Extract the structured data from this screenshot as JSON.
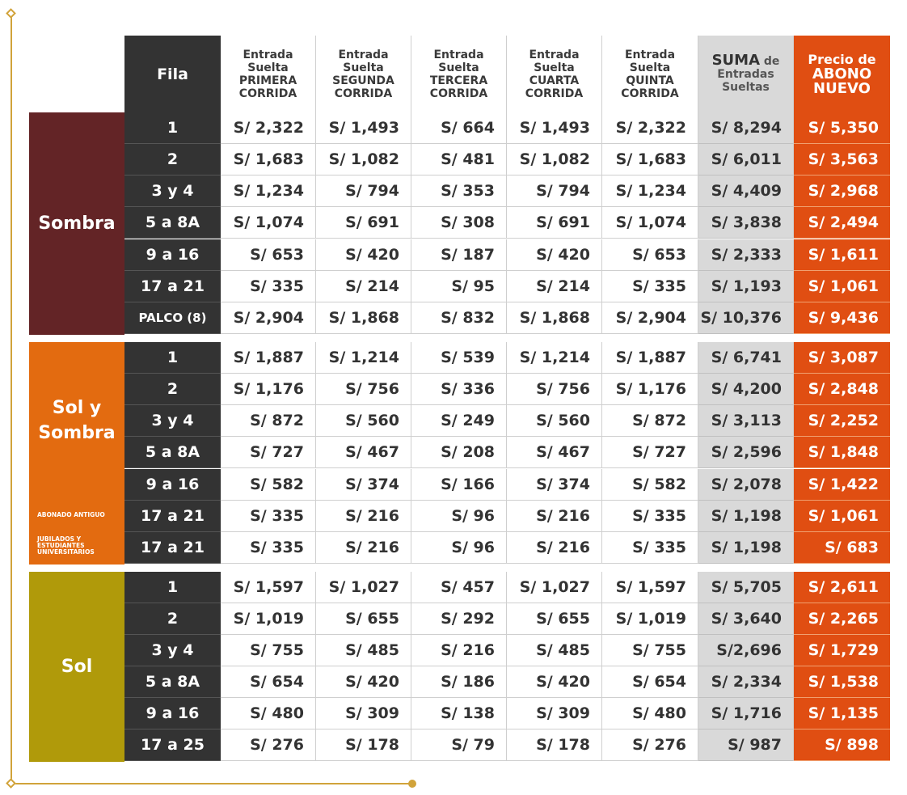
{
  "colors": {
    "accent_gold": "#d1a33a",
    "fila_bg": "#333333",
    "suma_bg": "#d9d9d9",
    "precio_bg": "#e04e12",
    "sombra": "#632426",
    "sol_y_sombra": "#e36b10",
    "sol": "#b09a0a"
  },
  "header": {
    "fila": "Fila",
    "c1": "Entrada\nSuelta\nPRIMERA\nCORRIDA",
    "c2": "Entrada\nSuelta\nSEGUNDA\nCORRIDA",
    "c3": "Entrada\nSuelta\nTERCERA\nCORRIDA",
    "c4": "Entrada\nSuelta\nCUARTA\nCORRIDA",
    "c5": "Entrada\nSuelta\nQUINTA\nCORRIDA",
    "suma_bold": "SUMA",
    "suma_rest": " de\nEntradas\nSueltas",
    "precio_top": "Precio de",
    "precio_bold": "ABONO\nNUEVO"
  },
  "groups": [
    {
      "label": "Sombra",
      "rows": [
        [
          "1",
          "S/ 2,322",
          "S/ 1,493",
          "S/ 664",
          "S/ 1,493",
          "S/ 2,322",
          "S/ 8,294",
          "S/ 5,350"
        ],
        [
          "2",
          "S/ 1,683",
          "S/ 1,082",
          "S/ 481",
          "S/ 1,082",
          "S/ 1,683",
          "S/ 6,011",
          "S/ 3,563"
        ],
        [
          "3 y 4",
          "S/ 1,234",
          "S/ 794",
          "S/ 353",
          "S/ 794",
          "S/ 1,234",
          "S/ 4,409",
          "S/ 2,968"
        ],
        [
          "5 a 8A",
          "S/ 1,074",
          "S/ 691",
          "S/ 308",
          "S/ 691",
          "S/ 1,074",
          "S/ 3,838",
          "S/ 2,494"
        ],
        [
          "9 a 16",
          "S/ 653",
          "S/ 420",
          "S/ 187",
          "S/ 420",
          "S/ 653",
          "S/ 2,333",
          "S/ 1,611"
        ],
        [
          "17 a 21",
          "S/ 335",
          "S/ 214",
          "S/ 95",
          "S/ 214",
          "S/ 335",
          "S/ 1,193",
          "S/ 1,061"
        ],
        [
          "PALCO (8)",
          "S/ 2,904",
          "S/ 1,868",
          "S/ 832",
          "S/ 1,868",
          "S/ 2,904",
          "S/ 10,376",
          "S/ 9,436"
        ]
      ]
    },
    {
      "label": "Sol y\nSombra",
      "note1": "ABONADO ANTIGUO",
      "note2": "JUBILADOS Y\nESTUDIANTES\nUNIVERSITARIOS",
      "rows": [
        [
          "1",
          "S/ 1,887",
          "S/ 1,214",
          "S/ 539",
          "S/ 1,214",
          "S/ 1,887",
          "S/ 6,741",
          "S/ 3,087"
        ],
        [
          "2",
          "S/ 1,176",
          "S/ 756",
          "S/ 336",
          "S/ 756",
          "S/ 1,176",
          "S/ 4,200",
          "S/ 2,848"
        ],
        [
          "3 y 4",
          "S/ 872",
          "S/ 560",
          "S/ 249",
          "S/ 560",
          "S/ 872",
          "S/ 3,113",
          "S/ 2,252"
        ],
        [
          "5 a 8A",
          "S/ 727",
          "S/ 467",
          "S/ 208",
          "S/ 467",
          "S/ 727",
          "S/ 2,596",
          "S/ 1,848"
        ],
        [
          "9 a 16",
          "S/ 582",
          "S/ 374",
          "S/ 166",
          "S/ 374",
          "S/ 582",
          "S/ 2,078",
          "S/ 1,422"
        ],
        [
          "17 a 21",
          "S/ 335",
          "S/ 216",
          "S/ 96",
          "S/ 216",
          "S/ 335",
          "S/ 1,198",
          "S/ 1,061"
        ],
        [
          "17 a 21",
          "S/ 335",
          "S/ 216",
          "S/ 96",
          "S/ 216",
          "S/ 335",
          "S/ 1,198",
          "S/ 683"
        ]
      ]
    },
    {
      "label": "Sol",
      "rows": [
        [
          "1",
          "S/ 1,597",
          "S/ 1,027",
          "S/ 457",
          "S/ 1,027",
          "S/ 1,597",
          "S/ 5,705",
          "S/ 2,611"
        ],
        [
          "2",
          "S/ 1,019",
          "S/ 655",
          "S/ 292",
          "S/ 655",
          "S/ 1,019",
          "S/ 3,640",
          "S/ 2,265"
        ],
        [
          "3 y 4",
          "S/ 755",
          "S/ 485",
          "S/ 216",
          "S/ 485",
          "S/ 755",
          "S/2,696",
          "S/ 1,729"
        ],
        [
          "5 a 8A",
          "S/ 654",
          "S/ 420",
          "S/ 186",
          "S/ 420",
          "S/ 654",
          "S/ 2,334",
          "S/ 1,538"
        ],
        [
          "9 a 16",
          "S/ 480",
          "S/ 309",
          "S/ 138",
          "S/ 309",
          "S/ 480",
          "S/ 1,716",
          "S/ 1,135"
        ],
        [
          "17 a 25",
          "S/ 276",
          "S/ 178",
          "S/ 79",
          "S/ 178",
          "S/ 276",
          "S/ 987",
          "S/ 898"
        ]
      ]
    }
  ]
}
